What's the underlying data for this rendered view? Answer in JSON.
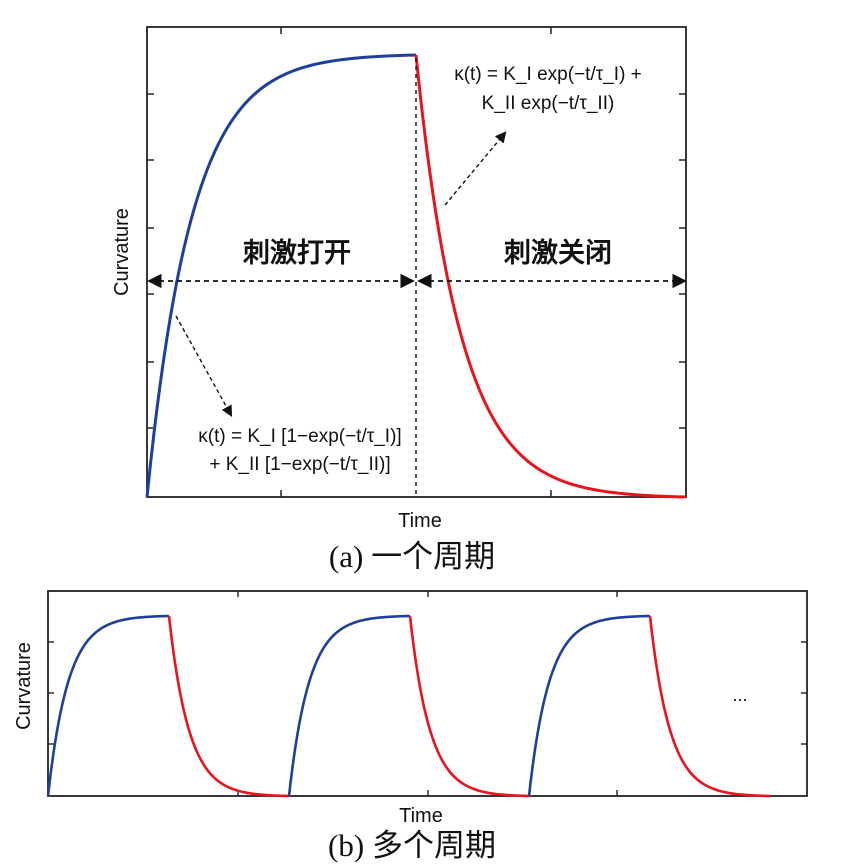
{
  "colors": {
    "rise": "#1f3f9c",
    "decay": "#e8141b",
    "axis": "#222222"
  },
  "chart_data": [
    {
      "type": "line",
      "xlabel": "Time",
      "ylabel": "Curvature",
      "caption": "(a)  一个周期",
      "phase_on_label": "刺激打开",
      "phase_off_label": "刺激关闭",
      "eq_rise": [
        "κ(t) = K_I [1−exp(−t/τ_I)]",
        "+ K_II [1−exp(−t/τ_II)]"
      ],
      "eq_decay": [
        "κ(t) = K_I exp(−t/τ_I) +",
        "K_II exp(−t/τ_II)"
      ],
      "series": [
        {
          "phase": "stimulus-on",
          "color": "rise",
          "model": "1-exp(-t/tau)",
          "x": [
            0,
            1
          ],
          "y": [
            0,
            1
          ]
        },
        {
          "phase": "stimulus-off",
          "color": "decay",
          "model": "exp(-t/tau)",
          "x": [
            1,
            2
          ],
          "y": [
            1,
            0
          ]
        }
      ]
    },
    {
      "type": "line",
      "xlabel": "Time",
      "ylabel": "Curvature",
      "caption": "(b)  多个周期",
      "ellipsis": "...",
      "cycles": 3
    }
  ]
}
